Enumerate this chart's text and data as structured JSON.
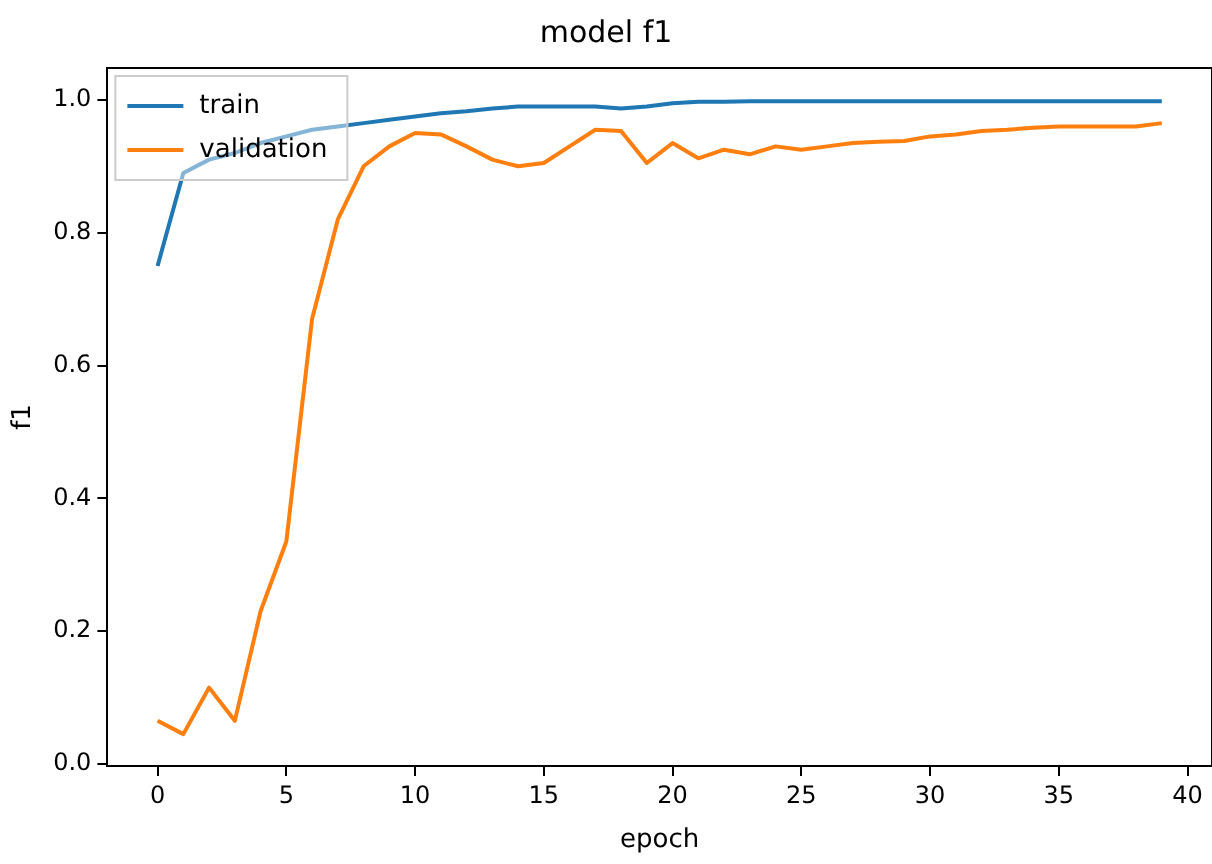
{
  "chart_data": {
    "type": "line",
    "title": "model f1",
    "xlabel": "epoch",
    "ylabel": "f1",
    "x": [
      0,
      1,
      2,
      3,
      4,
      5,
      6,
      7,
      8,
      9,
      10,
      11,
      12,
      13,
      14,
      15,
      16,
      17,
      18,
      19,
      20,
      21,
      22,
      23,
      24,
      25,
      26,
      27,
      28,
      29,
      30,
      31,
      32,
      33,
      34,
      35,
      36,
      37,
      38,
      39
    ],
    "series": [
      {
        "name": "train",
        "color": "#1f77b4",
        "values": [
          0.75,
          0.89,
          0.91,
          0.92,
          0.935,
          0.945,
          0.955,
          0.96,
          0.965,
          0.97,
          0.975,
          0.98,
          0.983,
          0.987,
          0.99,
          0.99,
          0.99,
          0.99,
          0.987,
          0.99,
          0.995,
          0.997,
          0.997,
          0.998,
          0.998,
          0.998,
          0.998,
          0.998,
          0.998,
          0.998,
          0.998,
          0.998,
          0.998,
          0.998,
          0.998,
          0.998,
          0.998,
          0.998,
          0.998,
          0.998
        ]
      },
      {
        "name": "validation",
        "color": "#ff7f0e",
        "values": [
          0.065,
          0.045,
          0.115,
          0.065,
          0.23,
          0.335,
          0.67,
          0.82,
          0.9,
          0.93,
          0.95,
          0.948,
          0.93,
          0.91,
          0.9,
          0.905,
          0.93,
          0.955,
          0.953,
          0.905,
          0.935,
          0.912,
          0.925,
          0.918,
          0.93,
          0.925,
          0.93,
          0.935,
          0.937,
          0.938,
          0.945,
          0.948,
          0.953,
          0.955,
          0.958,
          0.96,
          0.96,
          0.96,
          0.96,
          0.965
        ]
      }
    ],
    "xlim": [
      -1.95,
      40.95
    ],
    "xticks": [
      0,
      5,
      10,
      15,
      20,
      25,
      30,
      35,
      40
    ],
    "ylim": [
      -0.003,
      1.048
    ],
    "yticks": [
      {
        "value": 0,
        "label": "0.0"
      },
      {
        "value": 0.2,
        "label": "0.2"
      },
      {
        "value": 0.4,
        "label": "0.4"
      },
      {
        "value": 0.6,
        "label": "0.6"
      },
      {
        "value": 0.8,
        "label": "0.8"
      },
      {
        "value": 1,
        "label": "1.0"
      }
    ],
    "grid": false,
    "legend": "top left",
    "marker": "none",
    "line_style": "solid"
  }
}
